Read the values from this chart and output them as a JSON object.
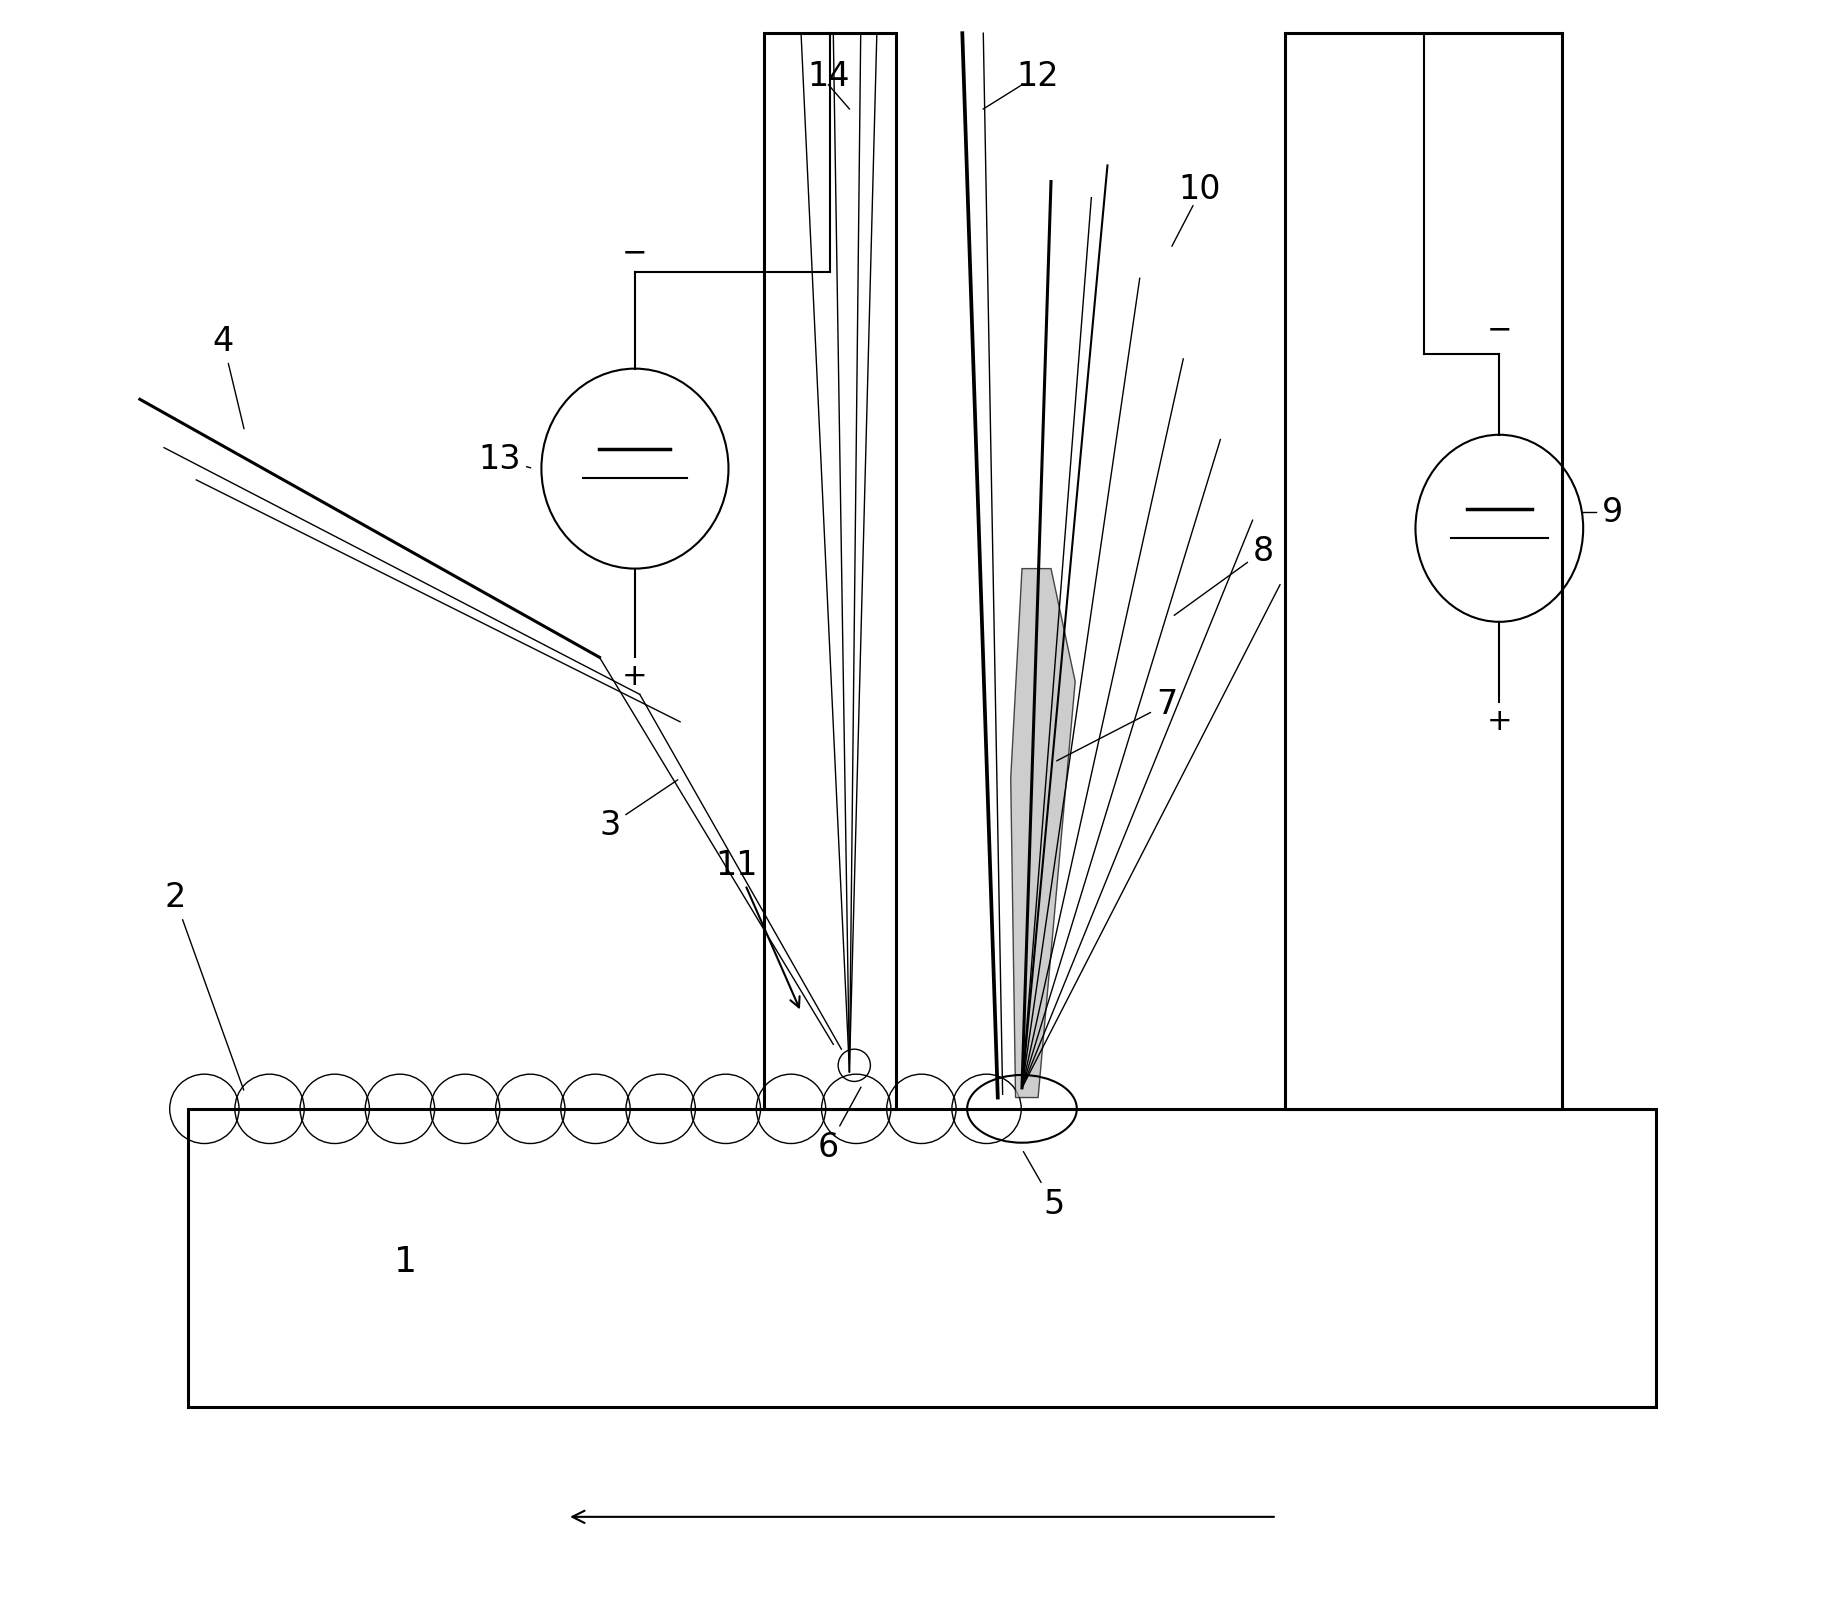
{
  "bg_color": "#ffffff",
  "line_color": "#000000",
  "figsize": [
    18.44,
    16.21
  ],
  "dpi": 100,
  "xlim": [
    0,
    10
  ],
  "ylim": [
    0,
    10
  ]
}
